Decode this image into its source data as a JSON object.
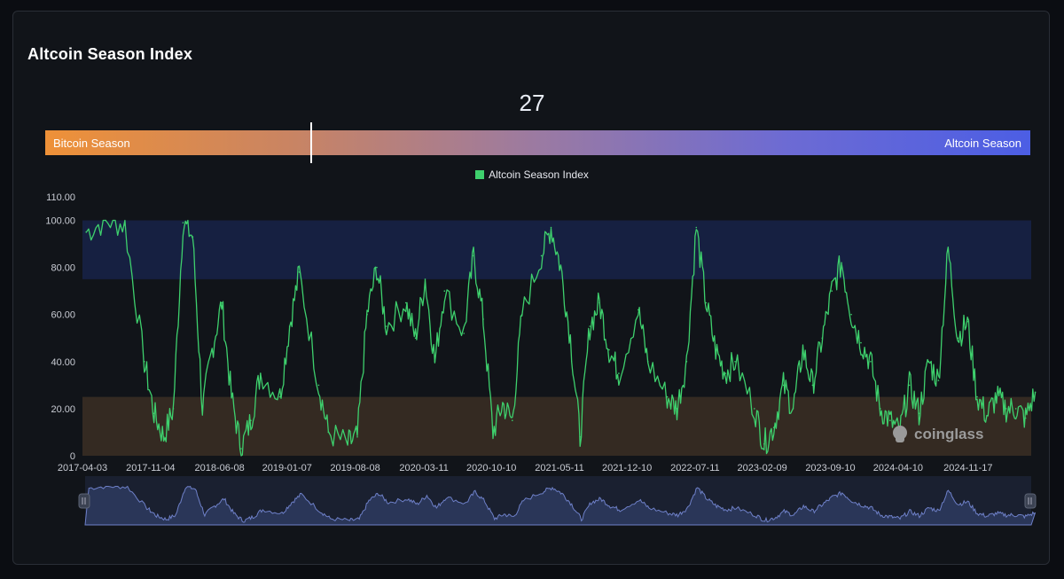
{
  "title": "Altcoin Season Index",
  "current_value": "27",
  "gauge": {
    "left_label": "Bitcoin Season",
    "right_label": "Altcoin Season",
    "value": 27
  },
  "legend": {
    "label": "Altcoin Season Index"
  },
  "watermark": "coinglass",
  "colors": {
    "line": "#3ed06d",
    "altcoin_band": "#162041",
    "bitcoin_band": "#342a22",
    "navigator_fill": "#2a3658",
    "navigator_line": "#6e80c8"
  },
  "chart_data": {
    "type": "line",
    "title": "Altcoin Season Index",
    "series_name": "Altcoin Season Index",
    "ylim": [
      0,
      110
    ],
    "y_ticks": [
      "0",
      "20.00",
      "40.00",
      "60.00",
      "80.00",
      "100.00",
      "110.00"
    ],
    "y_tick_values": [
      0,
      20,
      40,
      60,
      80,
      100,
      110
    ],
    "x_tick_labels": [
      "2017-04-03",
      "2017-11-04",
      "2018-06-08",
      "2019-01-07",
      "2019-08-08",
      "2020-03-11",
      "2020-10-10",
      "2021-05-11",
      "2021-12-10",
      "2022-07-11",
      "2023-02-09",
      "2023-09-10",
      "2024-04-10",
      "2024-11-17"
    ],
    "bands": [
      {
        "name": "Altcoin Season zone",
        "from": 75,
        "to": 100
      },
      {
        "name": "Bitcoin Season zone",
        "from": 0,
        "to": 25
      }
    ],
    "x_range": [
      "2017-04-03",
      "2025-06-02"
    ],
    "dates": [
      "2017-04",
      "2017-06",
      "2017-08",
      "2017-10",
      "2017-11",
      "2017-12",
      "2018-01",
      "2018-02",
      "2018-03",
      "2018-04",
      "2018-05",
      "2018-06",
      "2018-07",
      "2018-08",
      "2018-09",
      "2018-10",
      "2018-12",
      "2019-01",
      "2019-02",
      "2019-04",
      "2019-05",
      "2019-07",
      "2019-08",
      "2019-09",
      "2019-10",
      "2019-11",
      "2020-01",
      "2020-02",
      "2020-03",
      "2020-04",
      "2020-05",
      "2020-07",
      "2020-08",
      "2020-09",
      "2020-10",
      "2020-11",
      "2020-12",
      "2021-01",
      "2021-03",
      "2021-04",
      "2021-05",
      "2021-06",
      "2021-07",
      "2021-08",
      "2021-09",
      "2021-10",
      "2021-11",
      "2022-01",
      "2022-02",
      "2022-04",
      "2022-05",
      "2022-06",
      "2022-07",
      "2022-08",
      "2022-09",
      "2022-10",
      "2022-11",
      "2023-01",
      "2023-02",
      "2023-03",
      "2023-04",
      "2023-05",
      "2023-06",
      "2023-07",
      "2023-08",
      "2023-09",
      "2023-10",
      "2023-11",
      "2023-12",
      "2024-01",
      "2024-02",
      "2024-03",
      "2024-04",
      "2024-05",
      "2024-06",
      "2024-07",
      "2024-08",
      "2024-09",
      "2024-10",
      "2024-11",
      "2024-12",
      "2025-01",
      "2025-02",
      "2025-03",
      "2025-04",
      "2025-05",
      "2025-06"
    ],
    "values": [
      95,
      100,
      98,
      40,
      18,
      8,
      20,
      99,
      93,
      20,
      45,
      65,
      25,
      3,
      15,
      35,
      25,
      55,
      78,
      30,
      10,
      5,
      8,
      60,
      80,
      55,
      65,
      50,
      75,
      40,
      70,
      52,
      85,
      58,
      10,
      22,
      15,
      60,
      85,
      97,
      80,
      50,
      8,
      55,
      65,
      45,
      35,
      62,
      40,
      25,
      20,
      40,
      97,
      65,
      45,
      35,
      40,
      20,
      5,
      12,
      30,
      20,
      45,
      30,
      50,
      70,
      82,
      60,
      48,
      40,
      20,
      15,
      10,
      30,
      18,
      40,
      32,
      88,
      50,
      57,
      25,
      17,
      25,
      20,
      20,
      16,
      27
    ]
  }
}
